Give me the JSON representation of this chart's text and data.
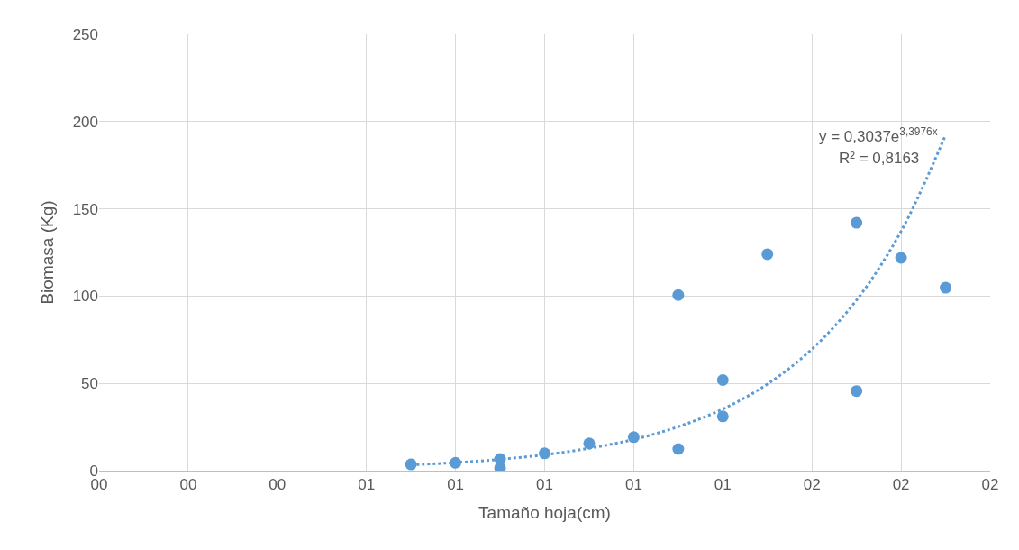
{
  "chart_data": {
    "type": "scatter",
    "xlabel": "Tamaño hoja(cm)",
    "ylabel": "Biomasa (Kg)",
    "series": [
      {
        "color": "#5b9bd5",
        "marker": "circle",
        "x": [
          0.7,
          0.8,
          0.9,
          0.9,
          1.0,
          1.1,
          1.2,
          1.3,
          1.3,
          1.4,
          1.4,
          1.5,
          1.7,
          1.7,
          1.8,
          1.9
        ],
        "values": [
          3.6,
          4.5,
          6.7,
          1.6,
          9.9,
          15.6,
          19.2,
          12.4,
          100.6,
          51.9,
          31.1,
          124,
          142,
          45.6,
          121.9,
          104.8
        ]
      },
      {
        "type": "line",
        "color": "#5b9bd5",
        "line_style": "dotted",
        "marker": "none",
        "x": [
          0.7,
          0.8,
          0.9,
          1.0,
          1.1,
          1.2,
          1.3,
          1.4,
          1.5,
          1.6,
          1.7,
          1.8,
          1.9
        ],
        "values": [
          3.3,
          4.6,
          6.5,
          9.1,
          12.8,
          17.9,
          25.2,
          35.3,
          49.6,
          69.6,
          97.7,
          137.1,
          192.4
        ]
      }
    ],
    "annotations": [
      "y = 0,3037e$^{3,3976x}$",
      "R² = 0,8163"
    ],
    "xlim": [
      0,
      2
    ],
    "xticks": [
      {
        "value": 0,
        "label": "00"
      },
      {
        "value": 0.2,
        "label": "00"
      },
      {
        "value": 0.4,
        "label": "00"
      },
      {
        "value": 0.6,
        "label": "01"
      },
      {
        "value": 0.8,
        "label": "01"
      },
      {
        "value": 1.0,
        "label": "01"
      },
      {
        "value": 1.2,
        "label": "01"
      },
      {
        "value": 1.4,
        "label": "01"
      },
      {
        "value": 1.6,
        "label": "02"
      },
      {
        "value": 1.8,
        "label": "02"
      },
      {
        "value": 2.0,
        "label": "02"
      }
    ],
    "ylim": [
      0,
      250
    ],
    "yticks": [
      0,
      50,
      100,
      150,
      200,
      250
    ],
    "grid": true,
    "legend": false
  }
}
